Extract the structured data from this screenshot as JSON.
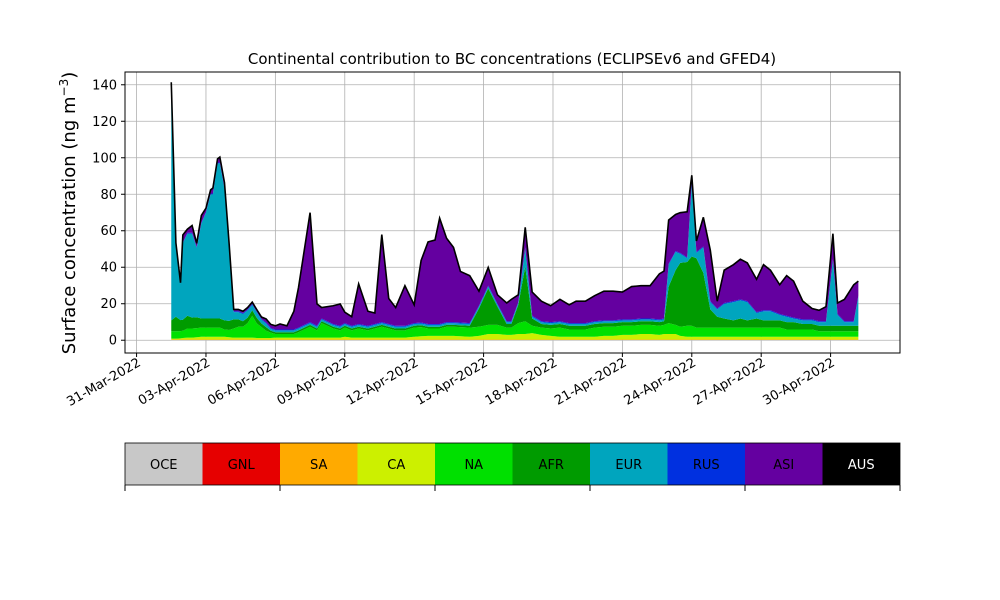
{
  "chart_data": {
    "type": "area",
    "title": "Continental contribution to BC concentrations (ECLIPSEv6 and GFED4)",
    "ylabel": "Surface concentration (ng m",
    "ylabel_sup": "−3",
    "ylabel_close": ")",
    "xlabel": "",
    "ylim": [
      -7,
      147
    ],
    "xlim": [
      -0.5,
      33
    ],
    "x_tick_labels": [
      "31-Mar-2022",
      "03-Apr-2022",
      "06-Apr-2022",
      "09-Apr-2022",
      "12-Apr-2022",
      "15-Apr-2022",
      "18-Apr-2022",
      "21-Apr-2022",
      "24-Apr-2022",
      "27-Apr-2022",
      "30-Apr-2022"
    ],
    "x_tick_values": [
      0,
      3,
      6,
      9,
      12,
      15,
      18,
      21,
      24,
      27,
      30
    ],
    "y_ticks": [
      0,
      20,
      40,
      60,
      80,
      100,
      120,
      140
    ],
    "grid": true,
    "x": [
      1.5,
      1.7,
      1.9,
      2.0,
      2.2,
      2.4,
      2.6,
      2.8,
      3.0,
      3.2,
      3.3,
      3.5,
      3.6,
      3.8,
      4.0,
      4.2,
      4.4,
      4.6,
      4.8,
      5.0,
      5.2,
      5.4,
      5.6,
      5.8,
      6.0,
      6.2,
      6.5,
      6.8,
      7.0,
      7.5,
      7.8,
      8.0,
      8.5,
      8.8,
      9.0,
      9.3,
      9.6,
      10.0,
      10.3,
      10.6,
      10.9,
      11.2,
      11.6,
      12.0,
      12.3,
      12.6,
      12.9,
      13.1,
      13.4,
      13.7,
      14.0,
      14.4,
      14.8,
      15.2,
      15.6,
      16.0,
      16.2,
      16.5,
      16.8,
      17.1,
      17.5,
      17.9,
      18.3,
      18.7,
      19.0,
      19.4,
      19.8,
      20.2,
      20.6,
      21.0,
      21.4,
      21.8,
      22.2,
      22.6,
      22.8,
      23.0,
      23.3,
      23.5,
      23.8,
      24.0,
      24.2,
      24.5,
      24.8,
      25.1,
      25.4,
      25.8,
      26.1,
      26.4,
      26.8,
      27.1,
      27.4,
      27.8,
      28.1,
      28.4,
      28.8,
      29.2,
      29.5,
      29.8,
      30.1,
      30.3,
      30.6,
      31.0,
      31.2
    ],
    "series": [
      {
        "name": "OCE",
        "color": "#c8c8c8",
        "values": [
          0.2,
          0.2,
          0.2,
          0.2,
          0.2,
          0.2,
          0.2,
          0.2,
          0.2,
          0.2,
          0.2,
          0.2,
          0.2,
          0.2,
          0.2,
          0.2,
          0.2,
          0.2,
          0.2,
          0.2,
          0.2,
          0.2,
          0.2,
          0.2,
          0.2,
          0.2,
          0.2,
          0.2,
          0.2,
          0.2,
          0.2,
          0.2,
          0.2,
          0.2,
          0.2,
          0.2,
          0.2,
          0.2,
          0.2,
          0.2,
          0.2,
          0.2,
          0.2,
          0.2,
          0.2,
          0.2,
          0.2,
          0.2,
          0.2,
          0.2,
          0.2,
          0.2,
          0.2,
          0.2,
          0.2,
          0.2,
          0.2,
          0.2,
          0.2,
          0.2,
          0.2,
          0.2,
          0.2,
          0.2,
          0.2,
          0.2,
          0.2,
          0.2,
          0.2,
          0.2,
          0.2,
          0.2,
          0.2,
          0.2,
          0.2,
          0.2,
          0.2,
          0.2,
          0.2,
          0.2,
          0.2,
          0.2,
          0.2,
          0.2,
          0.2,
          0.2,
          0.2,
          0.2,
          0.2,
          0.2,
          0.2,
          0.2,
          0.2,
          0.2,
          0.2,
          0.2,
          0.2,
          0.2,
          0.2,
          0.2,
          0.2,
          0.2,
          0.2
        ]
      },
      {
        "name": "GNL",
        "color": "#e60000",
        "values": [
          0,
          0,
          0,
          0,
          0,
          0,
          0,
          0,
          0,
          0,
          0,
          0,
          0,
          0,
          0,
          0,
          0,
          0,
          0,
          0,
          0,
          0,
          0,
          0,
          0,
          0,
          0,
          0,
          0,
          0,
          0,
          0,
          0,
          0,
          0,
          0,
          0,
          0,
          0,
          0,
          0,
          0,
          0,
          0,
          0,
          0,
          0,
          0,
          0,
          0,
          0,
          0,
          0,
          0,
          0,
          0,
          0,
          0,
          0,
          0,
          0,
          0,
          0,
          0,
          0,
          0,
          0,
          0,
          0,
          0,
          0,
          0,
          0,
          0,
          0,
          0,
          0,
          0,
          0,
          0,
          0,
          0,
          0,
          0,
          0,
          0,
          0,
          0,
          0,
          0,
          0,
          0,
          0,
          0,
          0,
          0,
          0,
          0,
          0,
          0,
          0,
          0,
          0
        ]
      },
      {
        "name": "SA",
        "color": "#ffaa00",
        "values": [
          0.2,
          0.2,
          0.2,
          0.2,
          0.2,
          0.2,
          0.2,
          0.2,
          0.2,
          0.2,
          0.2,
          0.2,
          0.2,
          0.2,
          0.2,
          0.2,
          0.2,
          0.2,
          0.2,
          0.2,
          0.2,
          0.2,
          0.2,
          0.2,
          0.2,
          0.2,
          0.2,
          0.2,
          0.2,
          0.2,
          0.2,
          0.2,
          0.2,
          0.2,
          0.2,
          0.2,
          0.2,
          0.2,
          0.2,
          0.2,
          0.2,
          0.2,
          0.2,
          0.2,
          0.2,
          0.2,
          0.2,
          0.2,
          0.2,
          0.2,
          0.2,
          0.2,
          0.2,
          0.2,
          0.2,
          0.2,
          0.2,
          0.2,
          0.2,
          0.2,
          0.2,
          0.2,
          0.2,
          0.2,
          0.2,
          0.2,
          0.2,
          0.2,
          0.2,
          0.2,
          0.2,
          0.2,
          0.2,
          0.2,
          0.2,
          0.2,
          0.2,
          0.2,
          0.2,
          0.2,
          0.2,
          0.2,
          0.2,
          0.2,
          0.2,
          0.2,
          0.2,
          0.2,
          0.2,
          0.2,
          0.2,
          0.2,
          0.2,
          0.2,
          0.2,
          0.2,
          0.2,
          0.2,
          0.2,
          0.2,
          0.2,
          0.2,
          0.2
        ]
      },
      {
        "name": "CA",
        "color": "#ccf000",
        "values": [
          0.5,
          0.5,
          0.6,
          0.8,
          1.0,
          1.0,
          1.2,
          1.5,
          1.5,
          1.5,
          1.5,
          1.5,
          1.5,
          1.5,
          1.2,
          1.0,
          1.0,
          1.0,
          1.0,
          1.0,
          0.8,
          0.8,
          0.8,
          0.8,
          1.0,
          1.0,
          1.0,
          1.0,
          1.0,
          1.0,
          1.0,
          1.0,
          1.0,
          1.0,
          1.5,
          1.0,
          1.0,
          1.0,
          1.0,
          1.0,
          1.0,
          1.0,
          1.0,
          1.5,
          1.8,
          2.0,
          2.0,
          2.0,
          2.0,
          2.0,
          1.8,
          1.5,
          2.0,
          3.0,
          3.0,
          2.5,
          2.5,
          3.0,
          3.0,
          3.5,
          2.5,
          2.0,
          1.5,
          1.5,
          1.5,
          1.5,
          1.5,
          2.0,
          2.0,
          2.5,
          2.5,
          3.0,
          3.0,
          2.5,
          3.0,
          3.0,
          3.0,
          2.0,
          1.5,
          1.5,
          1.5,
          1.5,
          1.5,
          1.5,
          1.5,
          1.5,
          1.5,
          1.5,
          1.5,
          1.5,
          1.5,
          1.5,
          1.5,
          1.5,
          1.5,
          1.5,
          1.5,
          1.5,
          1.5,
          1.5,
          1.5,
          1.5,
          1.5
        ]
      },
      {
        "name": "NA",
        "color": "#00e000",
        "values": [
          4,
          4,
          4,
          4,
          5,
          5,
          5,
          5,
          5,
          5,
          5,
          5,
          5,
          4,
          4,
          5,
          6,
          6,
          8,
          12,
          8,
          6,
          4,
          3,
          2,
          2,
          2,
          2,
          3,
          6,
          4,
          8,
          5,
          4,
          5,
          4,
          5,
          4,
          5,
          6,
          5,
          4,
          4,
          5,
          5,
          4,
          4,
          4,
          5,
          5,
          5,
          5,
          5,
          5,
          5,
          4,
          4,
          6,
          7,
          4,
          4,
          4,
          5,
          4,
          4,
          4,
          5,
          5,
          5,
          5,
          5,
          5,
          5,
          5,
          5,
          6,
          5,
          5,
          6,
          6,
          5,
          5,
          5,
          5,
          5,
          5,
          5,
          5,
          5,
          5,
          5,
          5,
          4,
          4,
          4,
          4,
          3,
          3,
          3,
          3,
          3,
          3,
          3
        ]
      },
      {
        "name": "AFR",
        "color": "#009b00",
        "values": [
          6,
          8,
          6,
          6,
          7,
          6,
          6,
          5,
          5,
          5,
          5,
          5,
          5,
          5,
          5,
          5,
          4,
          3,
          3,
          3,
          3,
          2,
          2,
          1,
          1,
          1,
          1,
          1,
          1,
          1,
          1,
          1,
          1,
          1,
          1,
          1,
          1,
          1,
          1,
          1,
          1,
          1,
          1,
          1,
          1,
          1,
          1,
          1,
          1,
          1,
          1,
          1,
          10,
          20,
          10,
          2,
          2,
          10,
          30,
          4,
          2,
          2,
          2,
          2,
          2,
          2,
          2,
          2,
          2,
          2,
          2,
          2,
          2,
          2,
          2,
          20,
          30,
          35,
          35,
          38,
          38,
          30,
          10,
          6,
          5,
          4,
          5,
          4,
          5,
          4,
          4,
          4,
          4,
          4,
          3,
          3,
          3,
          3,
          3,
          3,
          3,
          3,
          3
        ]
      },
      {
        "name": "EUR",
        "color": "#00a5be",
        "values": [
          130,
          40,
          20,
          42,
          45,
          46,
          38,
          52,
          58,
          68,
          68,
          85,
          85,
          72,
          40,
          4,
          4,
          4,
          4,
          3,
          3,
          2,
          2,
          1,
          1,
          1,
          1,
          1,
          1,
          1,
          1,
          1,
          1,
          1,
          1,
          1,
          1,
          1,
          1,
          1,
          1,
          1,
          1,
          1,
          1,
          1,
          1,
          1,
          1,
          1,
          1,
          1,
          1,
          1,
          1,
          1,
          1,
          1,
          10,
          1,
          1,
          1,
          1,
          1,
          1,
          1,
          1,
          1,
          1,
          1,
          1,
          1,
          1,
          1,
          1,
          12,
          10,
          5,
          2,
          40,
          3,
          14,
          4,
          4,
          8,
          10,
          10,
          10,
          3,
          5,
          5,
          3,
          3,
          2,
          2,
          2,
          2,
          2,
          36,
          6,
          2,
          2,
          16
        ]
      },
      {
        "name": "RUS",
        "color": "#0030e0",
        "values": [
          0.5,
          0.5,
          0.5,
          0.5,
          0.5,
          0.5,
          0.5,
          0.5,
          0.5,
          0.5,
          0.5,
          0.5,
          0.5,
          0.5,
          0.5,
          0.5,
          0.5,
          0.5,
          0.5,
          0.5,
          0.5,
          0.5,
          0.5,
          0.5,
          0.5,
          0.5,
          0.5,
          0.5,
          0.5,
          0.5,
          0.5,
          0.5,
          0.5,
          0.5,
          0.5,
          0.5,
          0.5,
          0.5,
          0.5,
          0.5,
          0.5,
          0.5,
          0.5,
          0.5,
          0.5,
          0.5,
          0.5,
          0.5,
          0.5,
          0.5,
          0.5,
          0.5,
          0.5,
          0.5,
          0.5,
          0.5,
          0.5,
          0.5,
          0.5,
          0.5,
          0.5,
          0.5,
          0.5,
          0.5,
          0.5,
          0.5,
          0.5,
          0.5,
          0.5,
          0.5,
          0.5,
          0.5,
          0.5,
          0.5,
          0.5,
          0.5,
          0.5,
          0.5,
          0.5,
          0.5,
          0.5,
          0.5,
          0.5,
          0.5,
          0.5,
          0.5,
          0.5,
          0.5,
          0.5,
          0.5,
          0.5,
          0.5,
          0.5,
          0.5,
          0.5,
          0.5,
          0.5,
          0.5,
          0.5,
          0.5,
          0.5,
          0.5,
          0.5
        ]
      },
      {
        "name": "ASI",
        "color": "#6400a0",
        "values": [
          0,
          0,
          0,
          4,
          2,
          4,
          2,
          4,
          2,
          2,
          3,
          2,
          3,
          3,
          2,
          1,
          1,
          1,
          1,
          1,
          1,
          1,
          2,
          2,
          2,
          3,
          2,
          10,
          22,
          60,
          12,
          6,
          10,
          12,
          6,
          5,
          22,
          8,
          6,
          48,
          14,
          10,
          22,
          10,
          34,
          45,
          46,
          58,
          46,
          41,
          28,
          26,
          8,
          10,
          5,
          10,
          12,
          4,
          11,
          13,
          11,
          9,
          12,
          10,
          12,
          12,
          14,
          16,
          16,
          15,
          18,
          18,
          18,
          25,
          26,
          24,
          20,
          22,
          25,
          4,
          6,
          16,
          28,
          4,
          18,
          20,
          22,
          21,
          18,
          25,
          22,
          16,
          22,
          20,
          10,
          6,
          6,
          8,
          14,
          6,
          12,
          20,
          8
        ]
      },
      {
        "name": "AUS",
        "color": "#000000",
        "values": [
          0,
          0,
          0,
          0,
          0,
          0,
          0,
          0,
          0,
          0,
          0,
          0,
          0,
          0,
          0,
          0,
          0,
          0,
          0,
          0,
          0,
          0,
          0,
          0,
          0,
          0,
          0,
          0,
          0,
          0,
          0,
          0,
          0,
          0,
          0,
          0,
          0,
          0,
          0,
          0,
          0,
          0,
          0,
          0,
          0,
          0,
          0,
          0,
          0,
          0,
          0,
          0,
          0,
          0,
          0,
          0,
          0,
          0,
          0,
          0,
          0,
          0,
          0,
          0,
          0,
          0,
          0,
          0,
          0,
          0,
          0,
          0,
          0,
          0,
          0,
          0,
          0,
          0,
          0,
          0,
          0,
          0,
          0,
          0,
          0,
          0,
          0,
          0,
          0,
          0,
          0,
          0,
          0,
          0,
          0,
          0,
          0,
          0,
          0,
          0,
          0,
          0,
          0
        ]
      }
    ],
    "legend": {
      "placement": "below",
      "entries": [
        {
          "label": "OCE",
          "color": "#c8c8c8",
          "text_color": "#000000"
        },
        {
          "label": "GNL",
          "color": "#e60000",
          "text_color": "#000000"
        },
        {
          "label": "SA",
          "color": "#ffaa00",
          "text_color": "#000000"
        },
        {
          "label": "CA",
          "color": "#ccf000",
          "text_color": "#000000"
        },
        {
          "label": "NA",
          "color": "#00e000",
          "text_color": "#000000"
        },
        {
          "label": "AFR",
          "color": "#009b00",
          "text_color": "#000000"
        },
        {
          "label": "EUR",
          "color": "#00a5be",
          "text_color": "#000000"
        },
        {
          "label": "RUS",
          "color": "#0030e0",
          "text_color": "#000000"
        },
        {
          "label": "ASI",
          "color": "#6400a0",
          "text_color": "#000000"
        },
        {
          "label": "AUS",
          "color": "#000000",
          "text_color": "#ffffff"
        }
      ]
    }
  }
}
